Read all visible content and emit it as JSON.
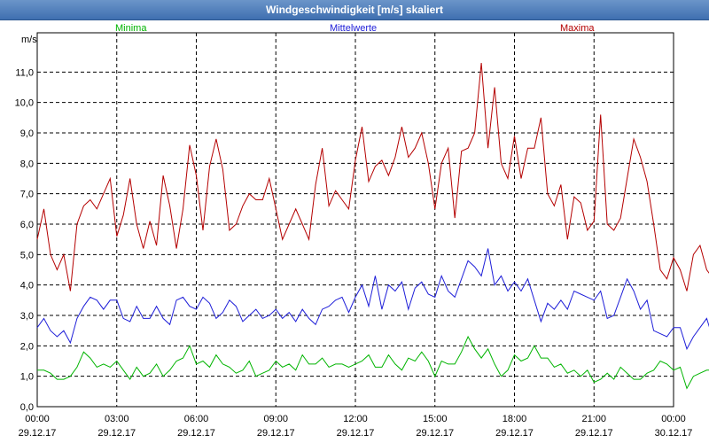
{
  "window": {
    "title": "Windgeschwindigkeit [m/s] skaliert"
  },
  "legend": {
    "min": "Minima",
    "mean": "Mittelwerte",
    "max": "Maxima"
  },
  "chart_data": {
    "type": "line",
    "title": "Windgeschwindigkeit [m/s] skaliert",
    "ylabel": "m/s",
    "xlabel": "",
    "ylim": [
      0,
      12
    ],
    "xlim_hours": [
      0,
      24
    ],
    "grid": true,
    "y_ticks": [
      "0,0",
      "1,0",
      "2,0",
      "3,0",
      "4,0",
      "5,0",
      "6,0",
      "7,0",
      "8,0",
      "9,0",
      "10,0",
      "11,0"
    ],
    "x_ticks": [
      {
        "time": "00:00",
        "date": "29.12.17"
      },
      {
        "time": "03:00",
        "date": "29.12.17"
      },
      {
        "time": "06:00",
        "date": "29.12.17"
      },
      {
        "time": "09:00",
        "date": "29.12.17"
      },
      {
        "time": "12:00",
        "date": "29.12.17"
      },
      {
        "time": "15:00",
        "date": "29.12.17"
      },
      {
        "time": "18:00",
        "date": "29.12.17"
      },
      {
        "time": "21:00",
        "date": "29.12.17"
      },
      {
        "time": "00:00",
        "date": "30.12.17"
      }
    ],
    "series": [
      {
        "name": "Maxima",
        "color": "#b40000",
        "x_start": 0,
        "x_step": 0.25,
        "values": [
          5.5,
          6.5,
          5.0,
          4.5,
          5.0,
          3.8,
          6.0,
          6.6,
          6.8,
          6.5,
          7.0,
          7.5,
          5.6,
          6.3,
          7.5,
          6.0,
          5.2,
          6.1,
          5.3,
          7.6,
          6.6,
          5.2,
          6.5,
          8.6,
          7.6,
          5.8,
          7.9,
          8.8,
          7.8,
          5.8,
          6.0,
          6.6,
          7.0,
          6.8,
          6.8,
          7.5,
          6.5,
          5.5,
          6.0,
          6.5,
          6.0,
          5.5,
          7.3,
          8.5,
          6.6,
          7.1,
          6.8,
          6.5,
          8.1,
          9.2,
          7.4,
          7.9,
          8.1,
          7.6,
          8.2,
          9.2,
          8.2,
          8.5,
          9.0,
          8.0,
          6.5,
          8.0,
          8.5,
          6.2,
          8.4,
          8.5,
          9.0,
          11.3,
          8.5,
          10.5,
          8.0,
          7.5,
          8.9,
          7.5,
          8.5,
          8.5,
          9.5,
          7.0,
          6.6,
          7.3,
          5.5,
          6.9,
          6.7,
          5.8,
          6.1,
          9.6,
          6.0,
          5.8,
          6.2,
          7.5,
          8.8,
          8.2,
          7.4,
          6.0,
          4.5,
          4.2,
          4.9,
          4.5,
          3.8,
          5.0,
          5.3,
          4.5,
          4.2,
          4.6,
          4.0,
          4.6,
          5.0,
          4.5,
          5.5,
          6.0,
          5.2,
          5.2,
          5.6,
          5.8,
          5.6,
          4.9,
          5.3,
          6.1,
          6.3,
          5.3,
          6.3,
          5.4,
          5.0,
          5.7,
          5.3,
          4.8,
          4.8,
          4.5,
          3.5,
          5.2,
          5.0,
          4.5,
          3.0,
          4.6,
          3.7,
          3.4,
          5.2,
          5.1,
          4.5,
          4.0,
          3.2,
          2.8
        ]
      },
      {
        "name": "Mittelwerte",
        "color": "#1e1ed8",
        "x_start": 0,
        "x_step": 0.25,
        "values": [
          2.6,
          2.9,
          2.5,
          2.3,
          2.5,
          2.1,
          2.9,
          3.3,
          3.6,
          3.5,
          3.2,
          3.5,
          3.5,
          2.9,
          2.8,
          3.3,
          2.9,
          2.9,
          3.3,
          2.9,
          2.7,
          3.5,
          3.6,
          3.3,
          3.2,
          3.6,
          3.4,
          2.9,
          3.1,
          3.5,
          3.3,
          2.8,
          3.0,
          3.2,
          2.9,
          3.0,
          3.2,
          2.9,
          3.1,
          2.8,
          3.2,
          2.9,
          2.7,
          3.2,
          3.3,
          3.5,
          3.6,
          3.1,
          3.6,
          4.0,
          3.3,
          4.3,
          3.2,
          4.0,
          3.8,
          4.1,
          3.2,
          3.9,
          4.1,
          3.7,
          3.6,
          4.3,
          3.8,
          3.6,
          4.2,
          4.8,
          4.6,
          4.3,
          5.2,
          4.0,
          4.3,
          3.8,
          4.1,
          3.8,
          4.2,
          3.5,
          2.8,
          3.4,
          3.2,
          3.5,
          3.2,
          3.8,
          3.7,
          3.6,
          3.5,
          3.8,
          2.9,
          3.0,
          3.6,
          4.2,
          3.8,
          3.2,
          3.5,
          2.5,
          2.4,
          2.3,
          2.6,
          2.6,
          1.9,
          2.3,
          2.6,
          2.9,
          2.2,
          2.5,
          2.5,
          2.5,
          2.8,
          2.7,
          2.8,
          3.1,
          3.3,
          3.4,
          3.3,
          3.0,
          3.2,
          3.5,
          3.4,
          3.1,
          3.3,
          3.0,
          2.9,
          3.3,
          3.4,
          3.0,
          3.5,
          3.2,
          3.4,
          3.5,
          2.7,
          3.0,
          2.8,
          2.2,
          2.5,
          2.0,
          2.5,
          3.0,
          2.8,
          3.2,
          3.4,
          2.7,
          2.4,
          2.0
        ]
      },
      {
        "name": "Minima",
        "color": "#00b400",
        "x_start": 0,
        "x_step": 0.25,
        "values": [
          1.2,
          1.2,
          1.1,
          0.9,
          0.9,
          1.0,
          1.3,
          1.8,
          1.6,
          1.3,
          1.4,
          1.3,
          1.5,
          1.2,
          0.9,
          1.3,
          1.0,
          1.1,
          1.4,
          1.0,
          1.2,
          1.5,
          1.6,
          2.0,
          1.4,
          1.5,
          1.3,
          1.7,
          1.4,
          1.3,
          1.1,
          1.2,
          1.5,
          1.0,
          1.1,
          1.2,
          1.5,
          1.3,
          1.4,
          1.2,
          1.7,
          1.4,
          1.4,
          1.6,
          1.3,
          1.4,
          1.4,
          1.3,
          1.4,
          1.5,
          1.7,
          1.3,
          1.3,
          1.7,
          1.4,
          1.2,
          1.6,
          1.5,
          1.8,
          1.5,
          1.0,
          1.5,
          1.4,
          1.4,
          1.8,
          2.3,
          1.9,
          1.6,
          1.9,
          1.4,
          1.0,
          1.2,
          1.7,
          1.5,
          1.6,
          2.0,
          1.6,
          1.6,
          1.3,
          1.4,
          1.1,
          1.2,
          1.0,
          1.2,
          0.8,
          0.9,
          1.1,
          0.9,
          1.3,
          1.1,
          0.9,
          0.9,
          1.1,
          1.2,
          1.5,
          1.4,
          1.2,
          1.3,
          0.6,
          1.0,
          1.1,
          1.2,
          1.2,
          1.0,
          1.3,
          1.4,
          1.2,
          1.5,
          1.4,
          1.5,
          1.7,
          1.6,
          1.7,
          1.4,
          1.5,
          1.9,
          1.5,
          1.2,
          1.6,
          1.4,
          1.5,
          1.5,
          1.3,
          1.3,
          1.2,
          1.3,
          1.1,
          1.4,
          0.9,
          1.2,
          1.1,
          1.6,
          1.2,
          1.5,
          1.3,
          1.1,
          1.4,
          1.4,
          1.2,
          1.5,
          1.7,
          1.6
        ]
      }
    ]
  }
}
